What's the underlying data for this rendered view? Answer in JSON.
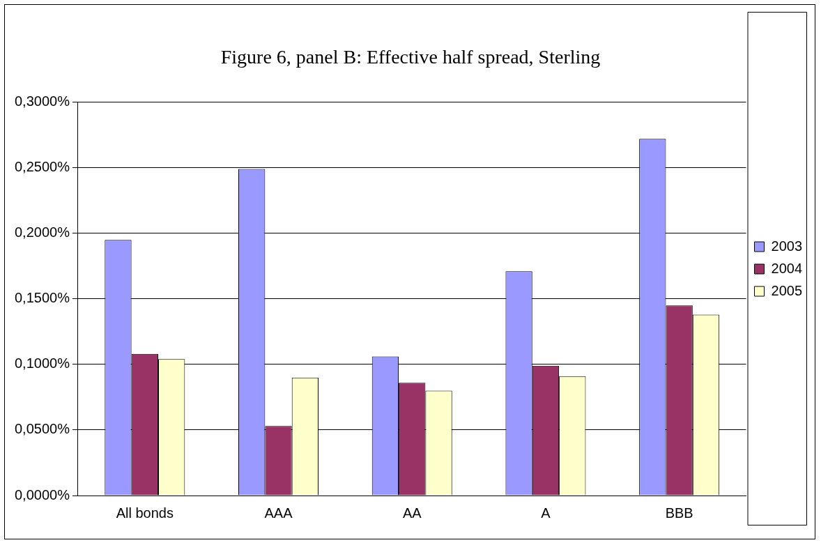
{
  "chart_data": {
    "type": "bar",
    "title": "Figure 6, panel B: Effective half spread, Sterling",
    "categories": [
      "All bonds",
      "AAA",
      "AA",
      "A",
      "BBB"
    ],
    "series": [
      {
        "name": "2003",
        "color": "#9999ff",
        "values": [
          0.195,
          0.249,
          0.106,
          0.171,
          0.272
        ]
      },
      {
        "name": "2004",
        "color": "#993366",
        "values": [
          0.108,
          0.053,
          0.086,
          0.099,
          0.145
        ]
      },
      {
        "name": "2005",
        "color": "#ffffcc",
        "values": [
          0.104,
          0.09,
          0.08,
          0.091,
          0.138
        ]
      }
    ],
    "ylim": [
      0,
      0.3
    ],
    "yticks": [
      {
        "value": 0,
        "label": "0,0000%"
      },
      {
        "value": 0.05,
        "label": "0,0500%"
      },
      {
        "value": 0.1,
        "label": "0,1000%"
      },
      {
        "value": 0.15,
        "label": "0,1500%"
      },
      {
        "value": 0.2,
        "label": "0,2000%"
      },
      {
        "value": 0.25,
        "label": "0,2500%"
      },
      {
        "value": 0.3,
        "label": "0,3000%"
      }
    ],
    "grid": "y",
    "legend": "right"
  }
}
